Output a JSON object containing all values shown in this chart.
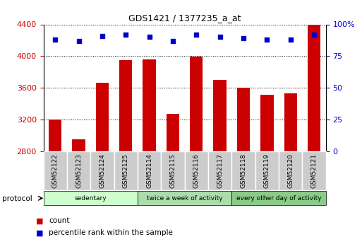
{
  "title": "GDS1421 / 1377235_a_at",
  "samples": [
    "GSM52122",
    "GSM52123",
    "GSM52124",
    "GSM52125",
    "GSM52114",
    "GSM52115",
    "GSM52116",
    "GSM52117",
    "GSM52118",
    "GSM52119",
    "GSM52120",
    "GSM52121"
  ],
  "counts": [
    3200,
    2950,
    3660,
    3950,
    3960,
    3270,
    3990,
    3700,
    3600,
    3510,
    3530,
    4400
  ],
  "percentile_ranks": [
    88,
    87,
    91,
    92,
    90,
    87,
    92,
    90,
    89,
    88,
    88,
    92
  ],
  "ylim_left": [
    2800,
    4400
  ],
  "ylim_right": [
    0,
    100
  ],
  "bar_color": "#cc0000",
  "dot_color": "#0000cc",
  "groups": [
    {
      "label": "sedentary",
      "start": 0,
      "end": 4
    },
    {
      "label": "twice a week of activity",
      "start": 4,
      "end": 8
    },
    {
      "label": "every other day of activity",
      "start": 8,
      "end": 12
    }
  ],
  "group_colors": [
    "#ccffcc",
    "#aaddaa",
    "#88cc88"
  ],
  "sample_box_color": "#cccccc",
  "protocol_label": "protocol",
  "legend_items": [
    {
      "label": "count",
      "color": "#cc0000"
    },
    {
      "label": "percentile rank within the sample",
      "color": "#0000cc"
    }
  ],
  "left_tick_color": "#cc0000",
  "right_tick_color": "#0000cc",
  "grid_color": "#000000",
  "background_color": "#ffffff"
}
